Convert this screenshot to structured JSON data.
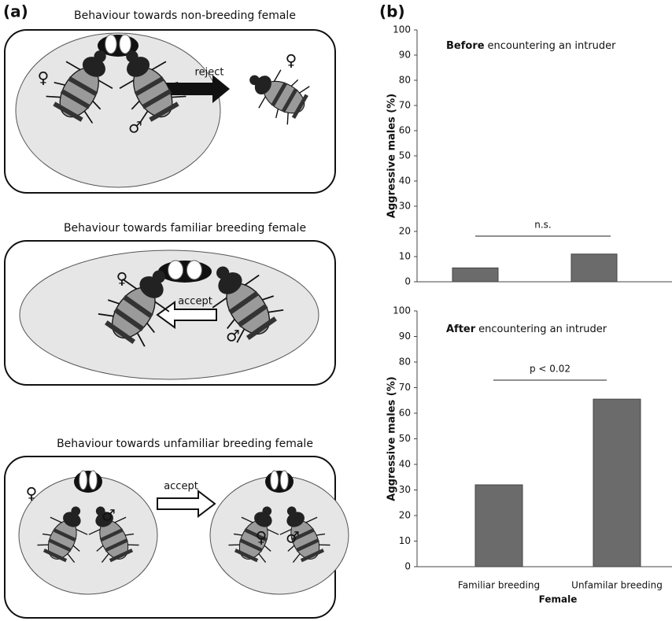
{
  "panel_a": {
    "label": "(a)",
    "scenes": [
      {
        "title": "Behaviour towards non-breeding female",
        "action": "reject",
        "symbols": [
          "♀",
          "♂",
          "♀"
        ]
      },
      {
        "title": "Behaviour towards familiar breeding female",
        "action": "accept",
        "symbols": [
          "♀",
          "♂"
        ]
      },
      {
        "title": "Behaviour towards unfamiliar breeding female",
        "action": "accept",
        "symbols": [
          "♀",
          "♂",
          "♀",
          "♂"
        ]
      }
    ]
  },
  "panel_b": {
    "label": "(b)"
  },
  "chart_data": [
    {
      "type": "bar",
      "title_emphasis": "Before",
      "title": "encountering an intruder",
      "ylabel": "Aggressive males (%)",
      "categories": [
        null,
        null
      ],
      "values": [
        5.5,
        11
      ],
      "color": "#6b6b6b",
      "annotation": "n.s.",
      "ylim": [
        0,
        100
      ],
      "yticks": [
        0,
        10,
        20,
        30,
        40,
        50,
        60,
        70,
        80,
        90,
        100
      ]
    },
    {
      "type": "bar",
      "title_emphasis": "After",
      "title": "encountering an intruder",
      "ylabel": "Aggressive males (%)",
      "xlabel": "Female",
      "categories": [
        "Familiar breeding",
        "Unfamilar breeding"
      ],
      "values": [
        32,
        65.5
      ],
      "color": "#6b6b6b",
      "annotation": "p < 0.02",
      "ylim": [
        0,
        100
      ],
      "yticks": [
        0,
        10,
        20,
        30,
        40,
        50,
        60,
        70,
        80,
        90,
        100
      ]
    }
  ]
}
